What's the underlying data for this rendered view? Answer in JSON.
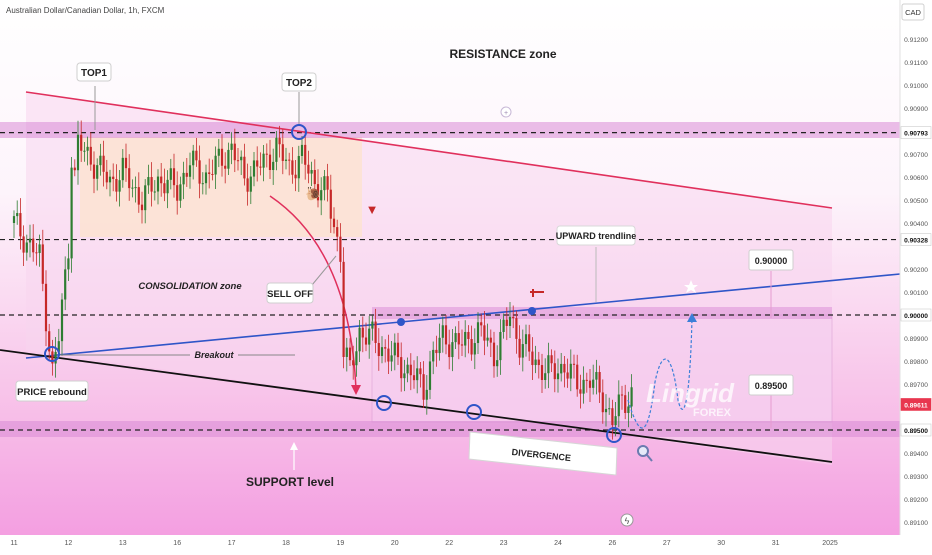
{
  "header": {
    "symbol_title": "Australian Dollar/Canadian Dollar, 1h, FXCM"
  },
  "currency_badge": "CAD",
  "watermark": {
    "brand": "Lingrid",
    "sub": "FOREX"
  },
  "colors": {
    "up": "#2e7d32",
    "down": "#c62828",
    "resistance_line": "#e0305c",
    "upward_trendline": "#2f55c8",
    "support_line": "#111111",
    "zone_fill": "#d98ad6",
    "current_price_tag": "#e8364f"
  },
  "chart_data": {
    "type": "candlestick",
    "title": "Australian Dollar/Canadian Dollar, 1h, FXCM",
    "y_axis": {
      "position": "right",
      "range": [
        0.8905,
        0.9126
      ],
      "ticks": [
        "0.91200",
        "0.91100",
        "0.91000",
        "0.90900",
        "0.90793",
        "0.90700",
        "0.90600",
        "0.90500",
        "0.90400",
        "0.90328",
        "0.90200",
        "0.90100",
        "0.90000",
        "0.89900",
        "0.89800",
        "0.89700",
        "0.89611",
        "0.89500",
        "0.89400",
        "0.89300",
        "0.89200",
        "0.89100"
      ],
      "tick_values": [
        0.912,
        0.911,
        0.91,
        0.909,
        0.90793,
        0.907,
        0.906,
        0.905,
        0.904,
        0.90328,
        0.902,
        0.901,
        0.9,
        0.899,
        0.898,
        0.897,
        0.89611,
        0.895,
        0.894,
        0.893,
        0.892,
        0.891
      ],
      "highlight_labels": [
        {
          "label": "0.90793",
          "value": 0.90793,
          "style": "level"
        },
        {
          "label": "0.90328",
          "value": 0.90328,
          "style": "level"
        },
        {
          "label": "0.90000",
          "value": 0.9,
          "style": "level"
        },
        {
          "label": "0.89611",
          "value": 0.89611,
          "style": "current"
        },
        {
          "label": "0.89500",
          "value": 0.895,
          "style": "level"
        }
      ]
    },
    "x_axis": {
      "labels": [
        "11",
        "12",
        "13",
        "16",
        "17",
        "18",
        "19",
        "20",
        "22",
        "23",
        "24",
        "26",
        "27",
        "30",
        "31",
        "2025"
      ],
      "bar_index": [
        0,
        17,
        34,
        51,
        68,
        85,
        102,
        119,
        136,
        153,
        170,
        187,
        204,
        221,
        238,
        255
      ]
    },
    "grid": false,
    "horizontal_levels": [
      0.90793,
      0.90328,
      0.9,
      0.895
    ],
    "zones": [
      {
        "name": "resistance",
        "from": 0.90765,
        "to": 0.9083
      },
      {
        "name": "support",
        "from": 0.8947,
        "to": 0.8953
      },
      {
        "name": "mid-range",
        "from": 0.89965,
        "to": 0.9001
      }
    ],
    "projection_note": "price path sketch from 0.8961 toward 0.9000",
    "price_path": [
      [
        0,
        0.904
      ],
      [
        4,
        0.9032
      ],
      [
        8,
        0.9025
      ],
      [
        12,
        0.8975
      ],
      [
        14,
        0.899
      ],
      [
        17,
        0.903
      ],
      [
        18,
        0.907
      ],
      [
        19,
        0.906
      ],
      [
        20,
        0.9074
      ],
      [
        24,
        0.9068
      ],
      [
        30,
        0.9058
      ],
      [
        34,
        0.9062
      ],
      [
        40,
        0.905
      ],
      [
        45,
        0.9059
      ],
      [
        51,
        0.9055
      ],
      [
        55,
        0.9066
      ],
      [
        60,
        0.906
      ],
      [
        66,
        0.907
      ],
      [
        68,
        0.9072
      ],
      [
        72,
        0.906
      ],
      [
        78,
        0.9066
      ],
      [
        82,
        0.9073
      ],
      [
        86,
        0.9064
      ],
      [
        90,
        0.9068
      ],
      [
        94,
        0.9058
      ],
      [
        98,
        0.9052
      ],
      [
        100,
        0.9038
      ],
      [
        102,
        0.9028
      ],
      [
        103,
        0.8985
      ],
      [
        105,
        0.8975
      ],
      [
        108,
        0.8993
      ],
      [
        112,
        0.899
      ],
      [
        118,
        0.8982
      ],
      [
        124,
        0.8975
      ],
      [
        128,
        0.8968
      ],
      [
        131,
        0.8983
      ],
      [
        134,
        0.899
      ],
      [
        140,
        0.8987
      ],
      [
        146,
        0.8993
      ],
      [
        150,
        0.8983
      ],
      [
        152,
        0.8989
      ],
      [
        155,
        0.9
      ],
      [
        158,
        0.8988
      ],
      [
        164,
        0.8978
      ],
      [
        168,
        0.8975
      ],
      [
        172,
        0.8978
      ],
      [
        176,
        0.897
      ],
      [
        180,
        0.8972
      ],
      [
        184,
        0.8964
      ],
      [
        187,
        0.8954
      ],
      [
        190,
        0.8962
      ],
      [
        193,
        0.8966
      ]
    ]
  },
  "annotations": {
    "resistance_zone": "RESISTANCE zone",
    "top1": "TOP1",
    "top2": "TOP2",
    "consolidation": "CONSOLIDATION zone",
    "sell_off": "SELL OFF",
    "upward_trendline": "UPWARD trendline",
    "breakout": "Breakout",
    "price_rebound": "PRICE rebound",
    "divergence": "DIVERGENCE",
    "support_level": "SUPPORT level",
    "target_box": "0.90000",
    "stop_box": "0.89500"
  }
}
